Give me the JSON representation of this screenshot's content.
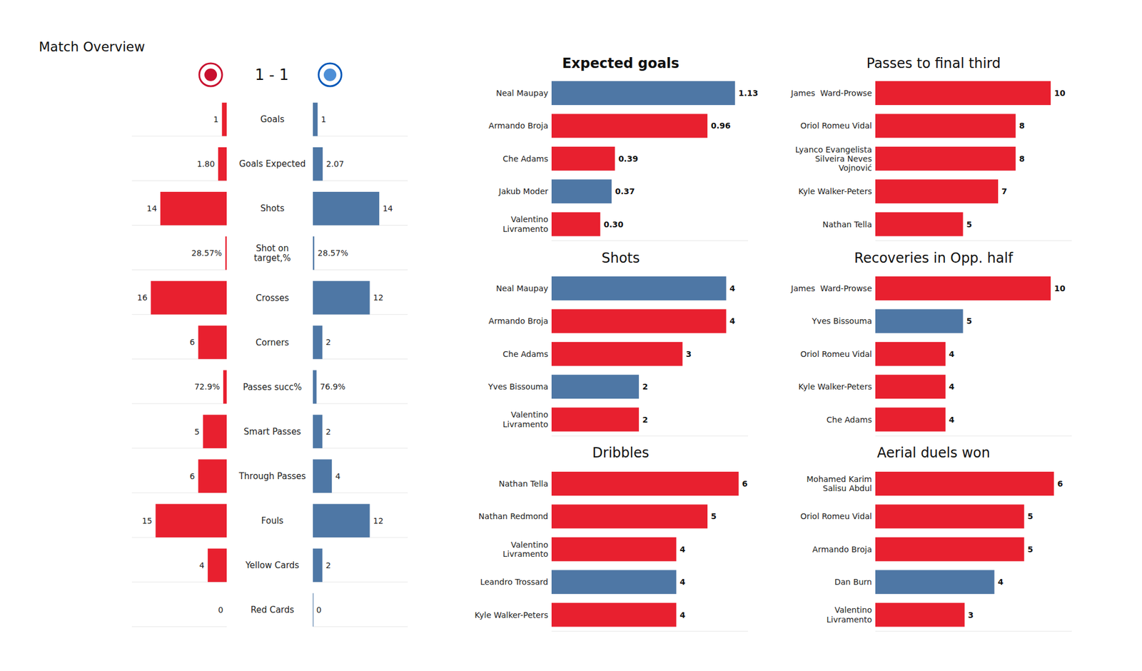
{
  "chart_data": [
    {
      "type": "diverging_bar",
      "title": "Match Overview",
      "subtitle": "1 - 1",
      "orientation": "horizontal",
      "data_labels": true,
      "tick_labels": false,
      "colors": [
        "#e8202f",
        "#4e77a5"
      ],
      "rows": [
        {
          "category": "Goals",
          "values": [
            1,
            1
          ],
          "xlim": [
            0,
            20
          ]
        },
        {
          "category": "Goals Expected",
          "values": [
            1.8,
            2.07
          ],
          "value_labels": [
            "1.80",
            "2.07"
          ],
          "xlim": [
            0,
            20
          ]
        },
        {
          "category": "Shots",
          "values": [
            14,
            14
          ],
          "xlim": [
            0,
            20
          ]
        },
        {
          "category": "Shot on target,%",
          "values": [
            28.57,
            28.57
          ],
          "value_labels": [
            "28.57%",
            "28.57%"
          ],
          "xlim": [
            0,
            2000
          ]
        },
        {
          "category": "Crosses",
          "values": [
            16,
            12
          ],
          "xlim": [
            0,
            20
          ]
        },
        {
          "category": "Corners",
          "values": [
            6,
            2
          ],
          "xlim": [
            0,
            20
          ]
        },
        {
          "category": "Passes succ%",
          "values": [
            72.9,
            76.9
          ],
          "value_labels": [
            "72.9%",
            "76.9%"
          ],
          "xlim": [
            0,
            2000
          ]
        },
        {
          "category": "Smart Passes",
          "values": [
            5,
            2
          ],
          "xlim": [
            0,
            20
          ]
        },
        {
          "category": "Through Passes",
          "values": [
            6,
            4
          ],
          "xlim": [
            0,
            20
          ]
        },
        {
          "category": "Fouls",
          "values": [
            15,
            12
          ],
          "xlim": [
            0,
            20
          ]
        },
        {
          "category": "Yellow Cards",
          "values": [
            4,
            2
          ],
          "xlim": [
            0,
            20
          ]
        },
        {
          "category": "Red Cards",
          "values": [
            0,
            0
          ],
          "xlim": [
            0,
            20
          ]
        }
      ]
    },
    {
      "type": "bar",
      "orientation": "horizontal",
      "title": "Expected goals",
      "data_labels": true,
      "tick_labels": "y",
      "categories": [
        "Neal Maupay",
        "Armando Broja",
        "Che Adams",
        "Jakub Moder",
        "Valentino Livramento"
      ],
      "values": [
        1.13,
        0.96,
        0.39,
        0.37,
        0.3
      ],
      "value_labels": [
        "1.13",
        "0.96",
        "0.39",
        "0.37",
        "0.30"
      ],
      "colors": [
        "#4e77a5",
        "#e8202f",
        "#e8202f",
        "#4e77a5",
        "#e8202f"
      ],
      "xlim": [
        0,
        1.21
      ]
    },
    {
      "type": "bar",
      "orientation": "horizontal",
      "title": "Passes to final third",
      "data_labels": true,
      "tick_labels": "y",
      "categories": [
        "James  Ward-Prowse",
        "Oriol Romeu Vidal",
        "Lyanco Evangelista Silveira Neves Vojnović",
        "Kyle Walker-Peters",
        "Nathan Tella"
      ],
      "values": [
        10,
        8,
        8,
        7,
        5
      ],
      "colors": [
        "#e8202f",
        "#e8202f",
        "#e8202f",
        "#e8202f",
        "#e8202f"
      ],
      "xlim": [
        0,
        11.2
      ]
    },
    {
      "type": "bar",
      "orientation": "horizontal",
      "title": "Shots",
      "data_labels": true,
      "tick_labels": "y",
      "categories": [
        "Neal Maupay",
        "Armando Broja",
        "Che Adams",
        "Yves Bissouma",
        "Valentino Livramento"
      ],
      "values": [
        4,
        4,
        3,
        2,
        2
      ],
      "colors": [
        "#4e77a5",
        "#e8202f",
        "#e8202f",
        "#4e77a5",
        "#e8202f"
      ],
      "xlim": [
        0,
        4.5
      ]
    },
    {
      "type": "bar",
      "orientation": "horizontal",
      "title": "Recoveries in Opp. half",
      "data_labels": true,
      "tick_labels": "y",
      "categories": [
        "James  Ward-Prowse",
        "Yves Bissouma",
        "Oriol Romeu Vidal",
        "Kyle Walker-Peters",
        "Che Adams"
      ],
      "values": [
        10,
        5,
        4,
        4,
        4
      ],
      "colors": [
        "#e8202f",
        "#4e77a5",
        "#e8202f",
        "#e8202f",
        "#e8202f"
      ],
      "xlim": [
        0,
        11.2
      ]
    },
    {
      "type": "bar",
      "orientation": "horizontal",
      "title": "Dribbles",
      "data_labels": true,
      "tick_labels": "y",
      "categories": [
        "Nathan Tella",
        "Nathan Redmond",
        "Valentino Livramento",
        "Leandro Trossard",
        "Kyle Walker-Peters"
      ],
      "values": [
        6,
        5,
        4,
        4,
        4
      ],
      "colors": [
        "#e8202f",
        "#e8202f",
        "#e8202f",
        "#4e77a5",
        "#e8202f"
      ],
      "xlim": [
        0,
        6.3
      ]
    },
    {
      "type": "bar",
      "orientation": "horizontal",
      "title": "Aerial duels won",
      "data_labels": true,
      "tick_labels": "y",
      "categories": [
        "Mohamed Karim Salisu Abdul",
        "Oriol Romeu Vidal",
        "Armando Broja",
        "Dan Burn",
        "Valentino Livramento"
      ],
      "values": [
        6,
        5,
        5,
        4,
        3
      ],
      "colors": [
        "#e8202f",
        "#e8202f",
        "#e8202f",
        "#4e77a5",
        "#e8202f"
      ],
      "xlim": [
        0,
        6.6
      ]
    }
  ]
}
